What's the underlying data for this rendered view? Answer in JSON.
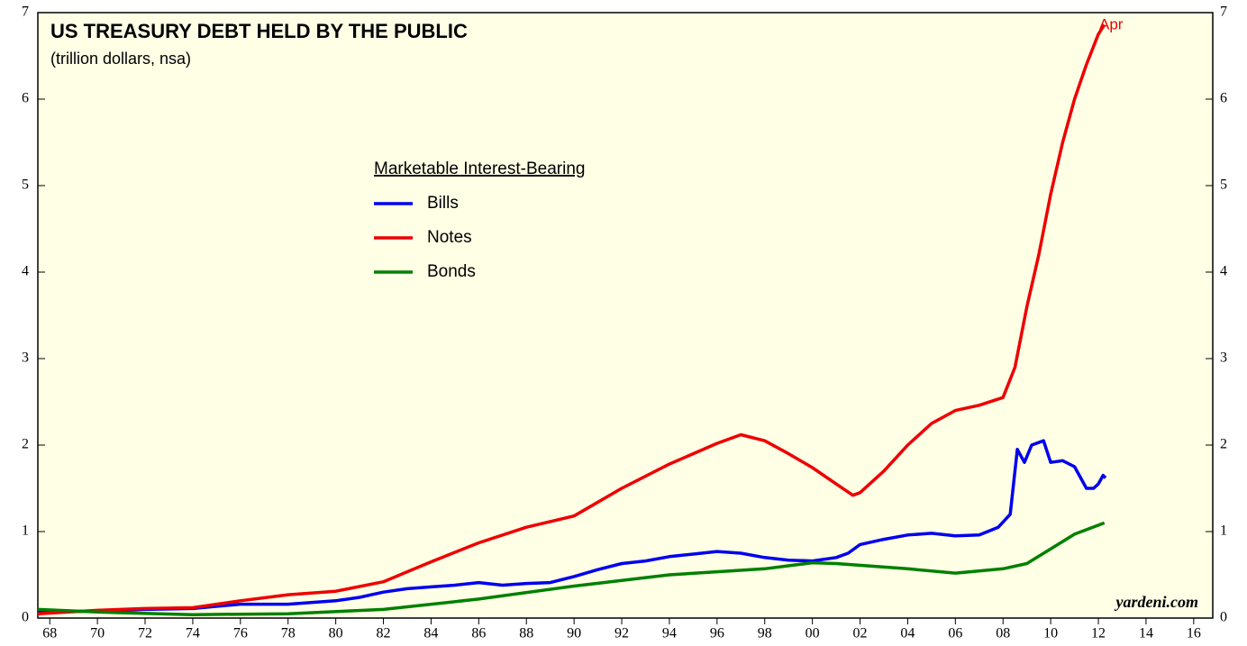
{
  "chart_data": {
    "type": "line",
    "title": "US TREASURY DEBT HELD BY THE PUBLIC",
    "subtitle": "(trillion dollars, nsa)",
    "legend_title": "Marketable Interest-Bearing",
    "annotations": [
      "Apr",
      "yardeni.com"
    ],
    "xlim": [
      1967.5,
      2016.8
    ],
    "xticks": [
      {
        "value": 1968,
        "label": "68"
      },
      {
        "value": 1970,
        "label": "70"
      },
      {
        "value": 1972,
        "label": "72"
      },
      {
        "value": 1974,
        "label": "74"
      },
      {
        "value": 1976,
        "label": "76"
      },
      {
        "value": 1978,
        "label": "78"
      },
      {
        "value": 1980,
        "label": "80"
      },
      {
        "value": 1982,
        "label": "82"
      },
      {
        "value": 1984,
        "label": "84"
      },
      {
        "value": 1986,
        "label": "86"
      },
      {
        "value": 1988,
        "label": "88"
      },
      {
        "value": 1990,
        "label": "90"
      },
      {
        "value": 1992,
        "label": "92"
      },
      {
        "value": 1994,
        "label": "94"
      },
      {
        "value": 1996,
        "label": "96"
      },
      {
        "value": 1998,
        "label": "98"
      },
      {
        "value": 2000,
        "label": "00"
      },
      {
        "value": 2002,
        "label": "02"
      },
      {
        "value": 2004,
        "label": "04"
      },
      {
        "value": 2006,
        "label": "06"
      },
      {
        "value": 2008,
        "label": "08"
      },
      {
        "value": 2010,
        "label": "10"
      },
      {
        "value": 2012,
        "label": "12"
      },
      {
        "value": 2014,
        "label": "14"
      },
      {
        "value": 2016,
        "label": "16"
      }
    ],
    "ylim": [
      0,
      7
    ],
    "yticks": [
      0,
      1,
      2,
      3,
      4,
      5,
      6,
      7
    ],
    "series": [
      {
        "name": "Bills",
        "color": "#0000ee",
        "x": [
          1967.5,
          1970,
          1972,
          1974,
          1976,
          1978,
          1980,
          1981,
          1982,
          1983,
          1984,
          1985,
          1986,
          1987,
          1988,
          1989,
          1990,
          1991,
          1992,
          1993,
          1994,
          1995,
          1996,
          1997,
          1998,
          1999,
          2000,
          2001,
          2001.5,
          2002,
          2003,
          2004,
          2005,
          2006,
          2007,
          2007.8,
          2008.3,
          2008.6,
          2008.9,
          2009.2,
          2009.7,
          2010,
          2010.5,
          2011,
          2011.5,
          2011.8,
          2012,
          2012.2,
          2012.3
        ],
        "values": [
          0.07,
          0.08,
          0.1,
          0.11,
          0.16,
          0.16,
          0.2,
          0.24,
          0.3,
          0.34,
          0.36,
          0.38,
          0.41,
          0.38,
          0.4,
          0.41,
          0.48,
          0.56,
          0.63,
          0.66,
          0.71,
          0.74,
          0.77,
          0.75,
          0.7,
          0.67,
          0.66,
          0.7,
          0.75,
          0.85,
          0.91,
          0.96,
          0.98,
          0.95,
          0.96,
          1.05,
          1.2,
          1.95,
          1.8,
          2.0,
          2.05,
          1.8,
          1.82,
          1.75,
          1.5,
          1.5,
          1.55,
          1.65,
          1.62
        ]
      },
      {
        "name": "Notes",
        "color": "#ee0000",
        "x": [
          1967.5,
          1970,
          1972,
          1974,
          1976,
          1978,
          1980,
          1982,
          1984,
          1986,
          1988,
          1990,
          1992,
          1994,
          1996,
          1997,
          1998,
          1999,
          2000,
          2001,
          2001.7,
          2002,
          2003,
          2004,
          2005,
          2006,
          2007,
          2008,
          2008.5,
          2009,
          2009.5,
          2010,
          2010.5,
          2011,
          2011.5,
          2012,
          2012.25
        ],
        "values": [
          0.05,
          0.09,
          0.11,
          0.12,
          0.2,
          0.27,
          0.31,
          0.42,
          0.65,
          0.87,
          1.05,
          1.18,
          1.5,
          1.78,
          2.02,
          2.12,
          2.05,
          1.9,
          1.74,
          1.55,
          1.42,
          1.45,
          1.7,
          2.0,
          2.25,
          2.4,
          2.46,
          2.55,
          2.9,
          3.6,
          4.2,
          4.9,
          5.5,
          6.0,
          6.4,
          6.75,
          6.86
        ]
      },
      {
        "name": "Bonds",
        "color": "#008000",
        "x": [
          1967.5,
          1970,
          1974,
          1978,
          1982,
          1986,
          1990,
          1994,
          1998,
          2000,
          2001,
          2004,
          2006,
          2008,
          2009,
          2010,
          2011,
          2012.25
        ],
        "values": [
          0.1,
          0.07,
          0.04,
          0.05,
          0.1,
          0.22,
          0.37,
          0.5,
          0.57,
          0.64,
          0.63,
          0.57,
          0.52,
          0.57,
          0.63,
          0.8,
          0.97,
          1.1
        ]
      }
    ]
  }
}
